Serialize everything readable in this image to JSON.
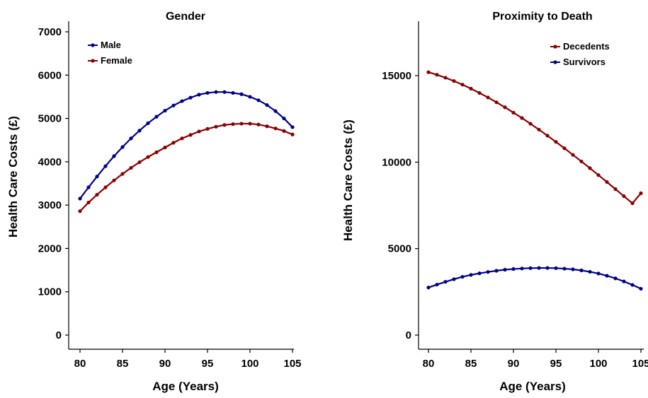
{
  "chart_data": [
    {
      "type": "line",
      "title": "Gender",
      "xlabel": "Age (Years)",
      "ylabel": "Health Care Costs (£)",
      "xlim": [
        80,
        105
      ],
      "ylim": [
        0,
        7000
      ],
      "x_ticks": [
        80,
        85,
        90,
        95,
        100,
        105
      ],
      "y_ticks": [
        0,
        1000,
        2000,
        3000,
        4000,
        5000,
        6000,
        7000
      ],
      "grid": false,
      "legend_position": "top-left",
      "x": [
        80,
        81,
        82,
        83,
        84,
        85,
        86,
        87,
        88,
        89,
        90,
        91,
        92,
        93,
        94,
        95,
        96,
        97,
        98,
        99,
        100,
        101,
        102,
        103,
        104,
        105
      ],
      "series": [
        {
          "name": "Male",
          "color": "#00008B",
          "values": [
            3150,
            3410,
            3660,
            3900,
            4130,
            4340,
            4540,
            4720,
            4890,
            5040,
            5180,
            5300,
            5400,
            5480,
            5550,
            5590,
            5610,
            5610,
            5590,
            5560,
            5500,
            5420,
            5310,
            5170,
            5000,
            4800
          ]
        },
        {
          "name": "Female",
          "color": "#8B0000",
          "values": [
            2860,
            3060,
            3240,
            3410,
            3570,
            3720,
            3860,
            3990,
            4110,
            4220,
            4330,
            4440,
            4540,
            4620,
            4700,
            4760,
            4810,
            4850,
            4870,
            4880,
            4880,
            4860,
            4820,
            4770,
            4710,
            4630
          ]
        }
      ]
    },
    {
      "type": "line",
      "title": "Proximity to Death",
      "xlabel": "Age (Years)",
      "ylabel": "Health Care Costs (£)",
      "xlim": [
        80,
        105
      ],
      "ylim": [
        0,
        17500
      ],
      "x_ticks": [
        80,
        85,
        90,
        95,
        100,
        105
      ],
      "y_ticks": [
        0,
        5000,
        10000,
        15000
      ],
      "grid": false,
      "legend_position": "top-right",
      "x": [
        80,
        81,
        82,
        83,
        84,
        85,
        86,
        87,
        88,
        89,
        90,
        91,
        92,
        93,
        94,
        95,
        96,
        97,
        98,
        99,
        100,
        101,
        102,
        103,
        104,
        105
      ],
      "series": [
        {
          "name": "Decedents",
          "color": "#8B0000",
          "values": [
            15200,
            15050,
            14880,
            14690,
            14480,
            14250,
            14000,
            13740,
            13460,
            13170,
            12860,
            12550,
            12220,
            11880,
            11530,
            11170,
            10800,
            10420,
            10040,
            9650,
            9250,
            8850,
            8440,
            8030,
            7620,
            8200
          ]
        },
        {
          "name": "Survivors",
          "color": "#00008B",
          "values": [
            2750,
            2920,
            3080,
            3230,
            3370,
            3480,
            3570,
            3650,
            3720,
            3780,
            3820,
            3850,
            3870,
            3880,
            3880,
            3870,
            3840,
            3800,
            3740,
            3660,
            3560,
            3430,
            3280,
            3100,
            2900,
            2680
          ]
        }
      ]
    }
  ]
}
